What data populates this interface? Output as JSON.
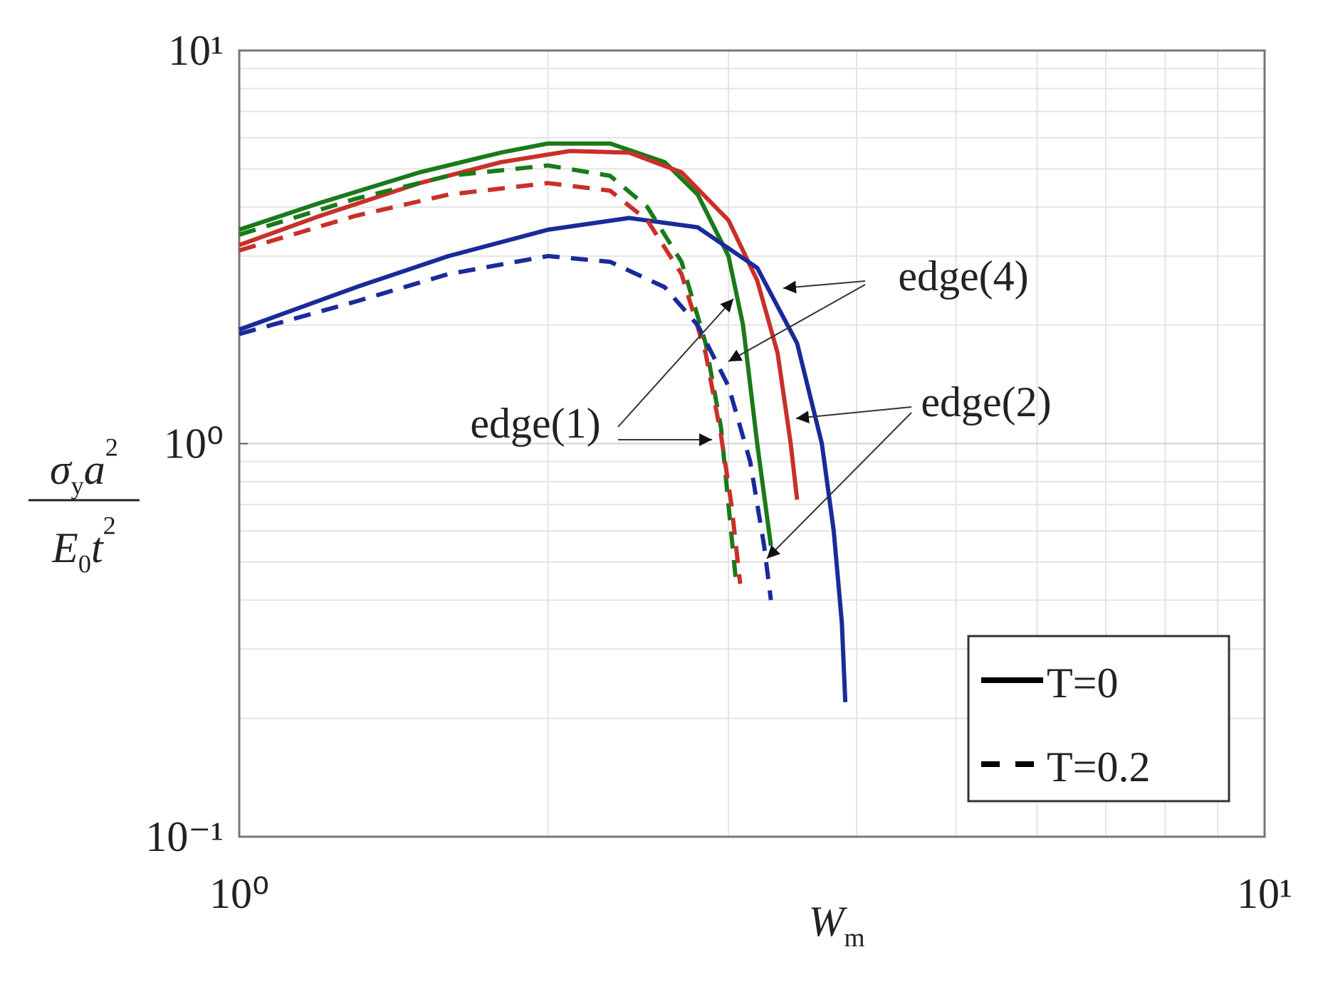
{
  "chart_data": {
    "type": "line",
    "xlog": true,
    "ylog": true,
    "grid": true,
    "minor_grid": true,
    "xlim": [
      1,
      10
    ],
    "ylim": [
      0.1,
      10
    ],
    "xticks": [
      {
        "value": 1,
        "label": "10⁰"
      },
      {
        "value": 10,
        "label": "10¹"
      }
    ],
    "yticks": [
      {
        "value": 0.1,
        "label": "10⁻¹"
      },
      {
        "value": 1,
        "label": "10⁰"
      },
      {
        "value": 10,
        "label": "10¹"
      }
    ],
    "xlabel": [
      {
        "text": "W"
      },
      {
        "text": "m",
        "sub": true
      }
    ],
    "ylabel": {
      "numerator": [
        {
          "text": "σ"
        },
        {
          "text": "y",
          "sub": true
        },
        {
          "text": "a"
        },
        {
          "text": "2",
          "sup": true
        }
      ],
      "denominator": [
        {
          "text": "E"
        },
        {
          "text": "0",
          "sub": true
        },
        {
          "text": "t"
        },
        {
          "text": "2",
          "sup": true
        }
      ]
    },
    "legend_position": "lower right",
    "legend": [
      {
        "label": "T=0",
        "color": "#000000",
        "dashed": false
      },
      {
        "label": "T=0.2",
        "color": "#000000",
        "dashed": true
      }
    ],
    "series": [
      {
        "color": "#1a7a1a",
        "dashed": false,
        "x": [
          1,
          1.2,
          1.5,
          1.8,
          2.0,
          2.3,
          2.6,
          2.8,
          3.0,
          3.1,
          3.2,
          3.3
        ],
        "values": [
          3.5,
          4.1,
          4.9,
          5.5,
          5.8,
          5.8,
          5.2,
          4.3,
          3.0,
          2.0,
          1.0,
          0.55
        ]
      },
      {
        "color": "#c8302a",
        "dashed": false,
        "x": [
          1,
          1.2,
          1.5,
          1.8,
          2.1,
          2.4,
          2.7,
          3.0,
          3.2,
          3.35,
          3.45,
          3.5
        ],
        "values": [
          3.2,
          3.8,
          4.6,
          5.2,
          5.55,
          5.5,
          4.9,
          3.7,
          2.6,
          1.7,
          1.0,
          0.72
        ]
      },
      {
        "color": "#1a2a9a",
        "dashed": false,
        "x": [
          1,
          1.3,
          1.6,
          2.0,
          2.4,
          2.8,
          3.2,
          3.5,
          3.7,
          3.8,
          3.87,
          3.9
        ],
        "values": [
          1.95,
          2.5,
          3.0,
          3.5,
          3.75,
          3.55,
          2.8,
          1.8,
          1.0,
          0.6,
          0.35,
          0.22
        ]
      },
      {
        "color": "#1a7a1a",
        "dashed": true,
        "x": [
          1,
          1.3,
          1.6,
          2.0,
          2.3,
          2.5,
          2.7,
          2.85,
          2.95,
          3.0,
          3.05
        ],
        "values": [
          3.4,
          4.2,
          4.8,
          5.1,
          4.8,
          4.0,
          2.9,
          1.8,
          1.1,
          0.7,
          0.45
        ]
      },
      {
        "color": "#c8302a",
        "dashed": true,
        "x": [
          1,
          1.3,
          1.6,
          2.0,
          2.3,
          2.5,
          2.7,
          2.85,
          2.95,
          3.02,
          3.08
        ],
        "values": [
          3.1,
          3.8,
          4.3,
          4.6,
          4.4,
          3.7,
          2.7,
          1.7,
          1.05,
          0.7,
          0.44
        ]
      },
      {
        "color": "#1a2a9a",
        "dashed": true,
        "x": [
          1,
          1.3,
          1.6,
          2.0,
          2.3,
          2.6,
          2.8,
          3.0,
          3.15,
          3.25,
          3.3
        ],
        "values": [
          1.9,
          2.3,
          2.7,
          3.0,
          2.9,
          2.5,
          2.0,
          1.4,
          0.9,
          0.55,
          0.4
        ]
      }
    ],
    "annotations": [
      "edge(1)",
      "edge(4)",
      "edge(2)"
    ]
  }
}
